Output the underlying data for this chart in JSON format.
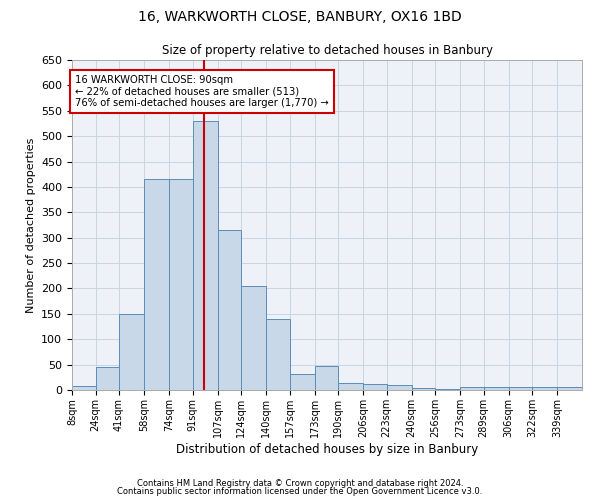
{
  "title": "16, WARKWORTH CLOSE, BANBURY, OX16 1BD",
  "subtitle": "Size of property relative to detached houses in Banbury",
  "xlabel": "Distribution of detached houses by size in Banbury",
  "ylabel": "Number of detached properties",
  "bar_color": "#c8d8e8",
  "bar_edge_color": "#5b8db8",
  "grid_color": "#c8d4e4",
  "bg_color": "#eef2f8",
  "annotation_box_color": "#cc0000",
  "annotation_line1": "16 WARKWORTH CLOSE: 90sqm",
  "annotation_line2": "← 22% of detached houses are smaller (513)",
  "annotation_line3": "76% of semi-detached houses are larger (1,770) →",
  "vline_x": 90,
  "vline_color": "#cc0000",
  "categories": [
    "8sqm",
    "24sqm",
    "41sqm",
    "58sqm",
    "74sqm",
    "91sqm",
    "107sqm",
    "124sqm",
    "140sqm",
    "157sqm",
    "173sqm",
    "190sqm",
    "206sqm",
    "223sqm",
    "240sqm",
    "256sqm",
    "273sqm",
    "289sqm",
    "306sqm",
    "322sqm",
    "339sqm"
  ],
  "values": [
    8,
    45,
    150,
    415,
    415,
    530,
    315,
    205,
    140,
    32,
    48,
    14,
    12,
    9,
    4,
    2,
    6,
    6,
    6,
    6,
    6
  ],
  "bin_edges": [
    0,
    16,
    32,
    49,
    66,
    82,
    99,
    115,
    132,
    148,
    165,
    181,
    198,
    214,
    231,
    247,
    264,
    280,
    297,
    313,
    330,
    347
  ],
  "ylim": [
    0,
    650
  ],
  "yticks": [
    0,
    50,
    100,
    150,
    200,
    250,
    300,
    350,
    400,
    450,
    500,
    550,
    600,
    650
  ],
  "footnote1": "Contains HM Land Registry data © Crown copyright and database right 2024.",
  "footnote2": "Contains public sector information licensed under the Open Government Licence v3.0."
}
